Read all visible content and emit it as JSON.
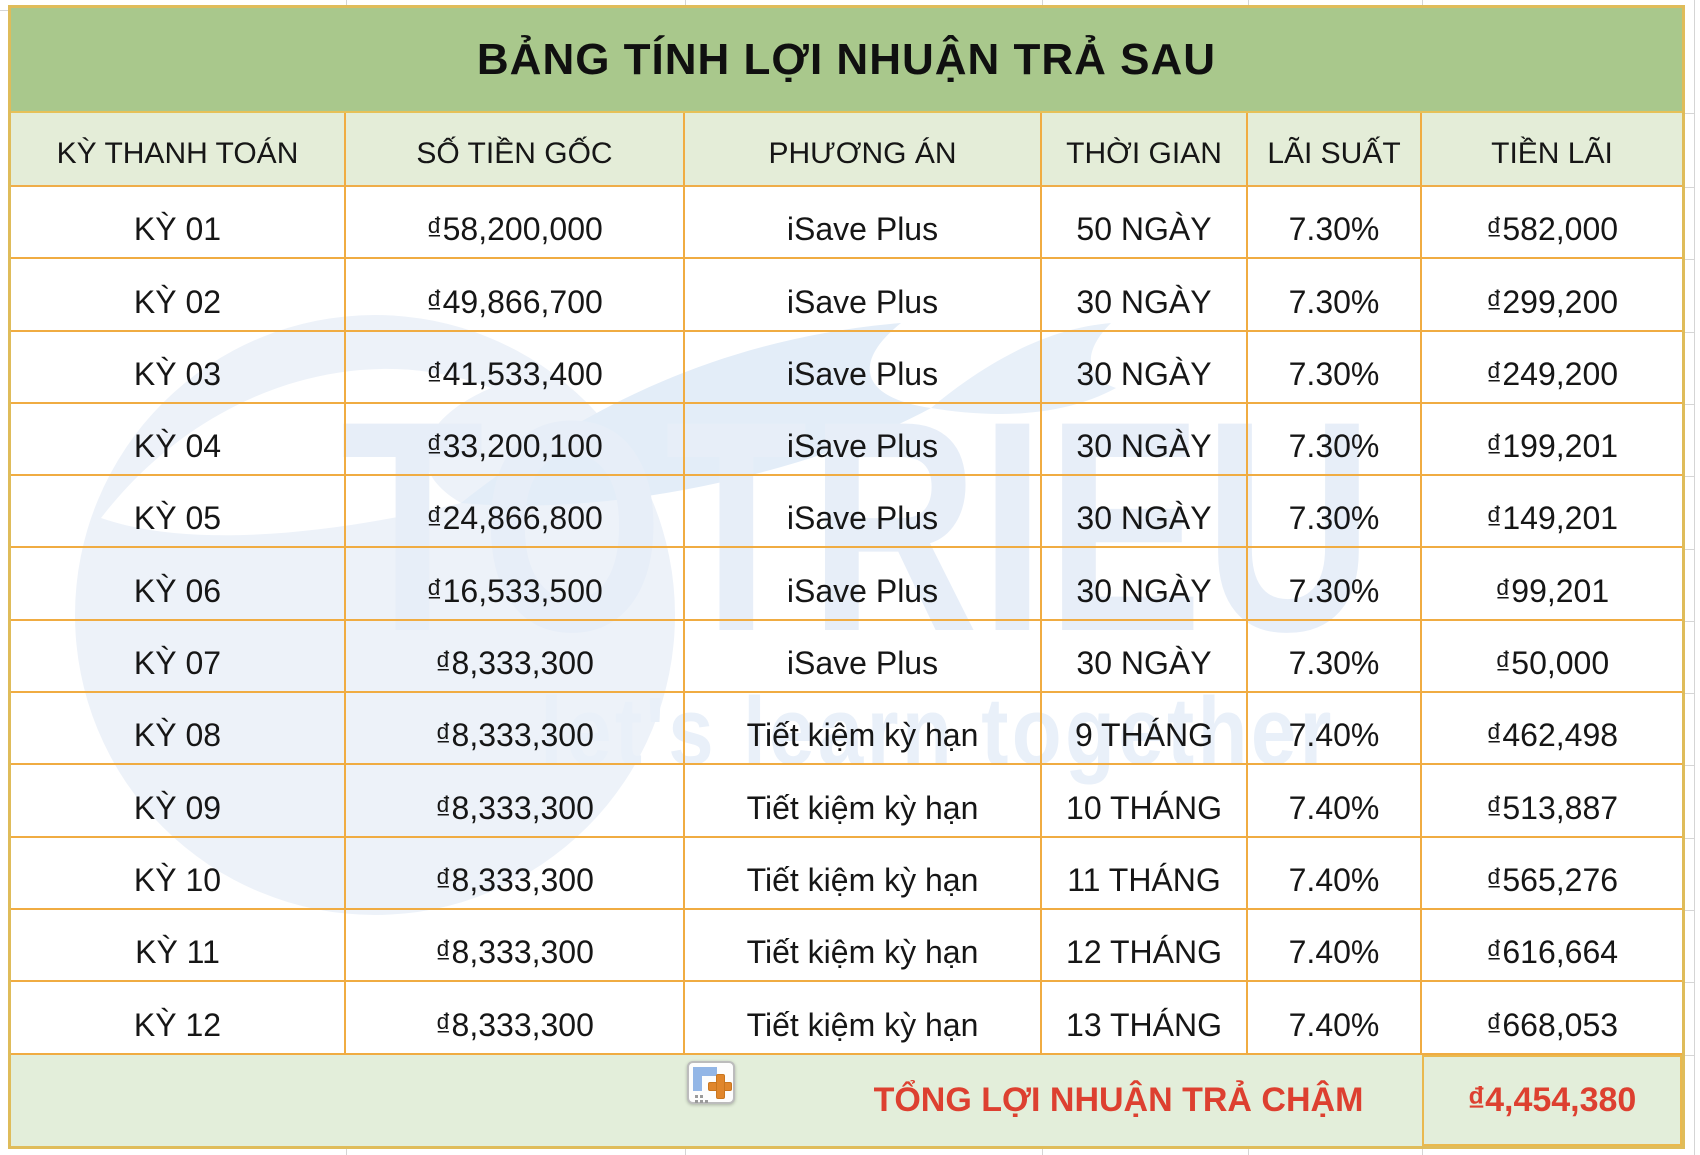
{
  "title": "BẢNG TÍNH LỢI NHUẬN TRẢ SAU",
  "columns": [
    "KỲ THANH TOÁN",
    "SỐ TIỀN GỐC",
    "PHƯƠNG ÁN",
    "THỜI GIAN",
    "LÃI SUẤT",
    "TIỀN LÃI"
  ],
  "rows": [
    {
      "period": "KỲ 01",
      "principal": "₫58,200,000",
      "plan": "iSave Plus",
      "duration": "50 NGÀY",
      "rate": "7.30%",
      "interest": "₫582,000"
    },
    {
      "period": "KỲ 02",
      "principal": "₫49,866,700",
      "plan": "iSave Plus",
      "duration": "30 NGÀY",
      "rate": "7.30%",
      "interest": "₫299,200"
    },
    {
      "period": "KỲ 03",
      "principal": "₫41,533,400",
      "plan": "iSave Plus",
      "duration": "30 NGÀY",
      "rate": "7.30%",
      "interest": "₫249,200"
    },
    {
      "period": "KỲ 04",
      "principal": "₫33,200,100",
      "plan": "iSave Plus",
      "duration": "30 NGÀY",
      "rate": "7.30%",
      "interest": "₫199,201"
    },
    {
      "period": "KỲ 05",
      "principal": "₫24,866,800",
      "plan": "iSave Plus",
      "duration": "30 NGÀY",
      "rate": "7.30%",
      "interest": "₫149,201"
    },
    {
      "period": "KỲ 06",
      "principal": "₫16,533,500",
      "plan": "iSave Plus",
      "duration": "30 NGÀY",
      "rate": "7.30%",
      "interest": "₫99,201"
    },
    {
      "period": "KỲ 07",
      "principal": "₫8,333,300",
      "plan": "iSave Plus",
      "duration": "30 NGÀY",
      "rate": "7.30%",
      "interest": "₫50,000"
    },
    {
      "period": "KỲ 08",
      "principal": "₫8,333,300",
      "plan": "Tiết kiệm kỳ hạn",
      "duration": "9 THÁNG",
      "rate": "7.40%",
      "interest": "₫462,498"
    },
    {
      "period": "KỲ 09",
      "principal": "₫8,333,300",
      "plan": "Tiết kiệm kỳ hạn",
      "duration": "10 THÁNG",
      "rate": "7.40%",
      "interest": "₫513,887"
    },
    {
      "period": "KỲ 10",
      "principal": "₫8,333,300",
      "plan": "Tiết kiệm kỳ hạn",
      "duration": "11 THÁNG",
      "rate": "7.40%",
      "interest": "₫565,276"
    },
    {
      "period": "KỲ 11",
      "principal": "₫8,333,300",
      "plan": "Tiết kiệm kỳ hạn",
      "duration": "12 THÁNG",
      "rate": "7.40%",
      "interest": "₫616,664"
    },
    {
      "period": "KỲ 12",
      "principal": "₫8,333,300",
      "plan": "Tiết kiệm kỳ hạn",
      "duration": "13 THÁNG",
      "rate": "7.40%",
      "interest": "₫668,053"
    }
  ],
  "footer": {
    "total_label": "TỔNG LỢI NHUẬN TRẢ CHẬM",
    "total_value": "₫4,454,380"
  },
  "watermark": {
    "brand": "TOTRIEU",
    "tagline": "let's learn together"
  },
  "colors": {
    "title_band_green": "#a9c88c",
    "header_band_green": "#e4edd8",
    "footer_band_green": "#e3eeda",
    "outer_border_gold": "#dfbc5a",
    "grid_line_orange": "#f0ac42",
    "accent_red": "#dd4030",
    "watermark_blue": "#e7eef8"
  }
}
